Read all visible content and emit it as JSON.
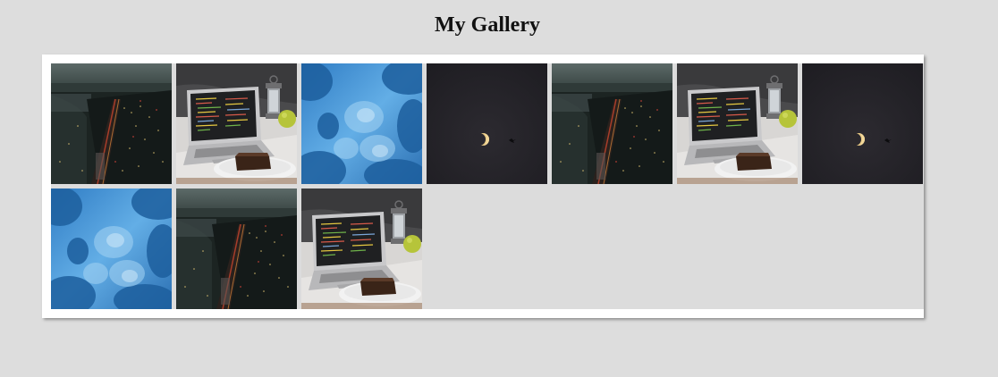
{
  "page": {
    "title": "My Gallery"
  },
  "colors": {
    "background": "#dddddd",
    "frame": "#ffffff",
    "grid_background": "#dcdcdc"
  },
  "gallery": {
    "images": [
      {
        "subject": "city-night-aerial"
      },
      {
        "subject": "laptop-desk-code"
      },
      {
        "subject": "blue-sky-clouds"
      },
      {
        "subject": "moon-night-sky"
      },
      {
        "subject": "city-night-aerial"
      },
      {
        "subject": "laptop-desk-code"
      },
      {
        "subject": "moon-night-sky"
      },
      {
        "subject": "blue-sky-clouds"
      },
      {
        "subject": "city-night-aerial"
      },
      {
        "subject": "laptop-desk-code"
      }
    ]
  }
}
